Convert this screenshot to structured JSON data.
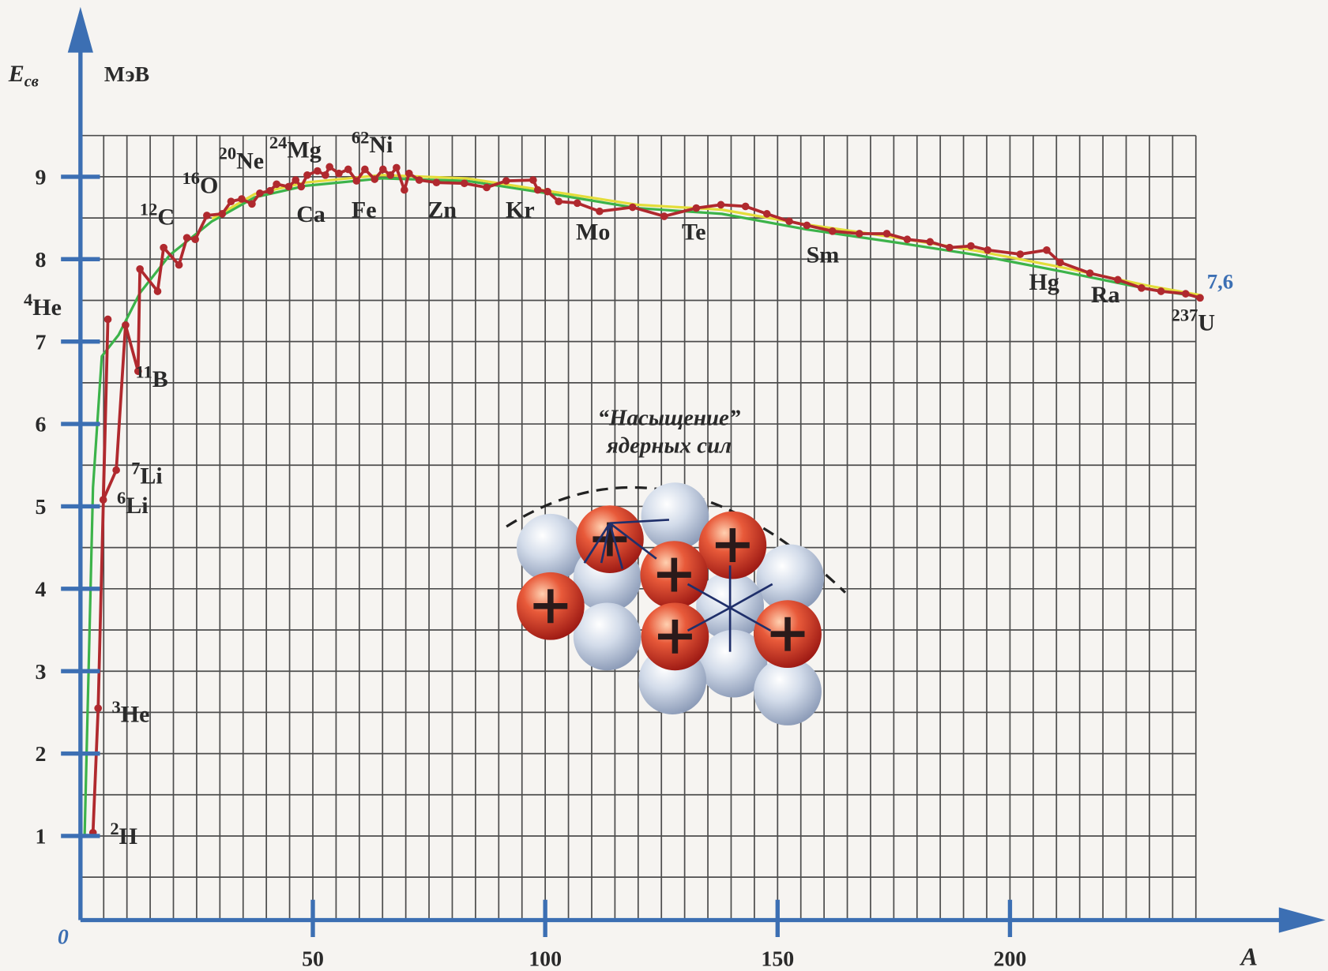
{
  "chart_data": {
    "type": "line",
    "y_label": "E",
    "y_label_sub": "св",
    "y_unit": "МэВ",
    "x_label": "A",
    "origin_label": "0",
    "end_label": "7,6",
    "inset_title": "“Насыщение”",
    "inset_subtitle": "ядерных сил",
    "xlim": [
      0,
      240
    ],
    "ylim": [
      0,
      9.5
    ],
    "xticks": [
      50,
      100,
      150,
      200
    ],
    "yticks": [
      1,
      2,
      3,
      4,
      5,
      6,
      7,
      8,
      9
    ],
    "grid": true,
    "grid_step_x": 5,
    "grid_step_y": 0.5,
    "series": [
      {
        "color": "#3cb34a",
        "x": [
          0.9,
          2.7,
          4.6,
          8.2,
          12.8,
          19.2,
          28.3,
          37.5,
          48.4,
          64.9,
          83.2,
          101.5,
          119.7,
          138.0,
          156.3,
          174.6,
          192.9,
          211.2,
          229.5,
          241.3
        ],
        "values": [
          1.0,
          5.23,
          6.82,
          7.08,
          7.59,
          8.05,
          8.46,
          8.75,
          8.89,
          8.98,
          8.95,
          8.79,
          8.62,
          8.55,
          8.36,
          8.21,
          8.05,
          7.85,
          7.64,
          7.54
        ]
      },
      {
        "color": "#e3dd3a",
        "x": [
          28.3,
          37.5,
          48.4,
          64.9,
          83.2,
          101.5,
          119.7,
          138.0,
          156.3,
          174.6,
          192.9,
          211.2,
          229.5,
          241.3
        ],
        "values": [
          8.49,
          8.79,
          8.93,
          9.02,
          8.98,
          8.82,
          8.66,
          8.6,
          8.42,
          8.27,
          8.1,
          7.9,
          7.68,
          7.56
        ]
      },
      {
        "color": "#b0292e",
        "x": [
          2.7,
          3.8,
          5.9,
          4.9,
          7.7,
          9.7,
          12.4,
          12.8,
          16.6,
          17.9,
          21.2,
          22.9,
          24.7,
          27.2,
          30.5,
          32.4,
          34.7,
          36.9,
          38.6,
          40.8,
          42.2,
          44.8,
          46.3,
          47.5,
          48.8,
          51.0,
          52.7,
          53.6,
          55.6,
          57.6,
          59.4,
          61.2,
          63.3,
          65.1,
          66.7,
          68.0,
          69.7,
          70.7,
          72.9,
          76.6,
          82.6,
          87.4,
          91.6,
          97.4,
          98.4,
          100.5,
          102.9,
          106.9,
          111.7,
          118.8,
          125.6,
          132.5,
          137.8,
          143.1,
          147.7,
          152.5,
          156.3,
          161.8,
          167.6,
          173.5,
          177.9,
          182.8,
          187.0,
          191.6,
          195.2,
          202.2,
          207.9,
          210.8,
          217.2,
          223.2,
          228.3,
          232.5,
          237.8,
          240.9
        ],
        "values": [
          1.04,
          2.55,
          7.27,
          5.08,
          5.44,
          7.2,
          6.64,
          7.88,
          7.61,
          8.14,
          7.93,
          8.26,
          8.24,
          8.53,
          8.55,
          8.7,
          8.73,
          8.67,
          8.8,
          8.83,
          8.91,
          8.88,
          8.96,
          8.88,
          9.02,
          9.07,
          9.02,
          9.12,
          9.04,
          9.09,
          8.95,
          9.09,
          8.97,
          9.09,
          9.02,
          9.11,
          8.84,
          9.04,
          8.96,
          8.93,
          8.92,
          8.87,
          8.95,
          8.96,
          8.84,
          8.82,
          8.7,
          8.68,
          8.58,
          8.63,
          8.52,
          8.62,
          8.66,
          8.64,
          8.55,
          8.46,
          8.41,
          8.34,
          8.31,
          8.31,
          8.24,
          8.21,
          8.14,
          8.16,
          8.11,
          8.06,
          8.11,
          7.96,
          7.83,
          7.75,
          7.65,
          7.61,
          7.58,
          7.53
        ]
      }
    ],
    "annotations": [
      {
        "mass": "2",
        "symbol": "H"
      },
      {
        "mass": "3",
        "symbol": "He"
      },
      {
        "mass": "6",
        "symbol": "Li"
      },
      {
        "mass": "7",
        "symbol": "Li"
      },
      {
        "mass": "4",
        "symbol": "He"
      },
      {
        "mass": "11",
        "symbol": "B"
      },
      {
        "mass": "12",
        "symbol": "C"
      },
      {
        "mass": "16",
        "symbol": "O"
      },
      {
        "mass": "20",
        "symbol": "Ne"
      },
      {
        "mass": "24",
        "symbol": "Mg"
      },
      {
        "mass": "62",
        "symbol": "Ni"
      },
      {
        "symbol": "Ca"
      },
      {
        "symbol": "Fe"
      },
      {
        "symbol": "Zn"
      },
      {
        "symbol": "Kr"
      },
      {
        "symbol": "Mo"
      },
      {
        "symbol": "Te"
      },
      {
        "symbol": "Sm"
      },
      {
        "symbol": "Hg"
      },
      {
        "symbol": "Ra"
      },
      {
        "mass": "237",
        "symbol": "U"
      }
    ]
  }
}
